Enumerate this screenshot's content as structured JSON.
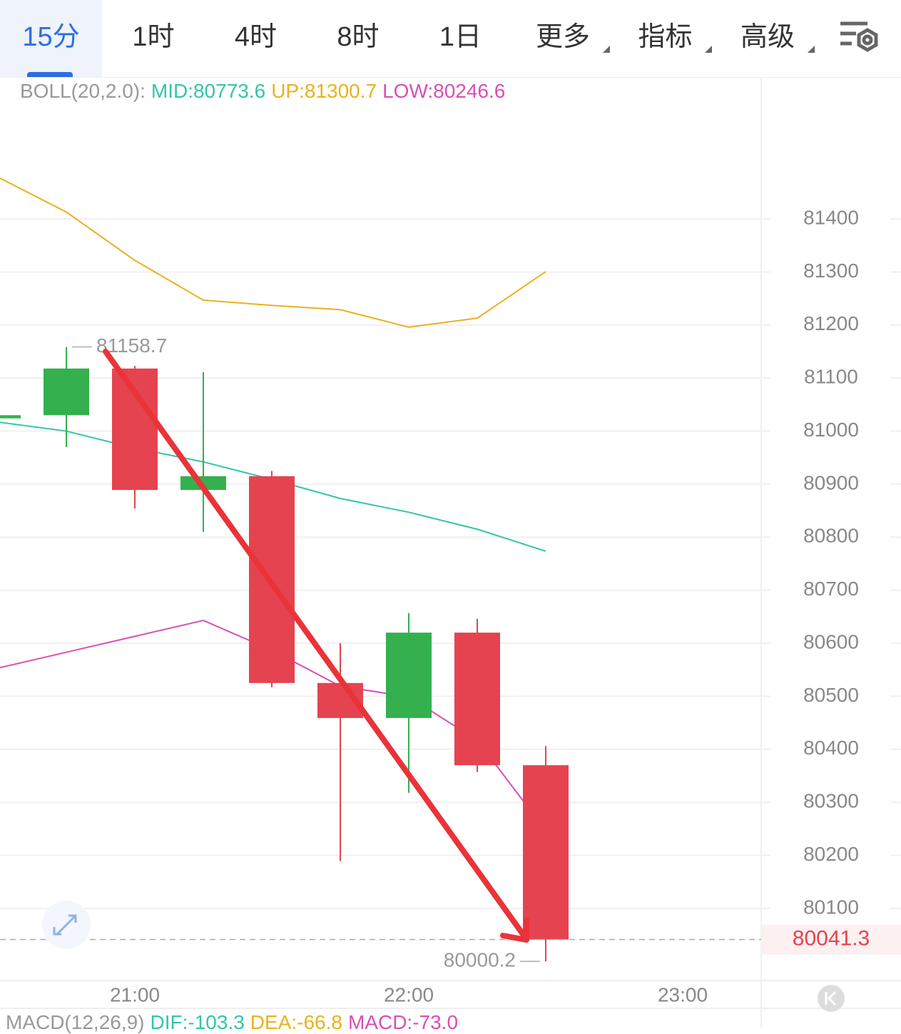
{
  "tabs": [
    "15分",
    "1时",
    "4时",
    "8时",
    "1日",
    "更多",
    "指标",
    "高级"
  ],
  "chart_data": {
    "type": "candlestick",
    "indicator": "BOLL(20,2.0):",
    "categories": [
      null,
      null,
      "21:00",
      null,
      null,
      null,
      "22:00",
      null,
      null,
      null,
      "23:00"
    ],
    "open": [
      81024,
      81030,
      81118,
      80889,
      80915,
      80525,
      80459,
      80620,
      80370,
      null,
      null
    ],
    "high": [
      81030,
      81158.7,
      81123,
      81111,
      80925,
      80600,
      80657,
      80646,
      80406,
      null,
      null
    ],
    "low": [
      81024,
      80970,
      80854,
      80810,
      80517,
      80189,
      80318,
      80357,
      80000.2,
      null,
      null
    ],
    "close": [
      81030,
      81118,
      80889,
      80915,
      80525,
      80459,
      80620,
      80370,
      80041.3,
      null,
      null
    ],
    "up_color": "#34b04f",
    "down_color": "#e5434f",
    "series": [
      {
        "name": "MID:80773.6",
        "color": "#33c6a6",
        "values": [
          81017,
          81000,
          80968,
          80942,
          80909,
          80873,
          80847,
          80815,
          80773.6,
          null,
          null
        ]
      },
      {
        "name": "UP:81300.7",
        "color": "#e9b21c",
        "values": [
          81479,
          81413,
          81322,
          81247,
          81237,
          81229,
          81196,
          81213,
          81300.7,
          null,
          null
        ]
      },
      {
        "name": "LOW:80246.6",
        "color": "#d94fb6",
        "values": [
          80553,
          80583,
          80613,
          80643,
          80587,
          80519,
          80499,
          80417,
          80246.6,
          null,
          null
        ]
      }
    ],
    "ylim": [
      79964,
      81665
    ],
    "yticks": [
      80100,
      80200,
      80300,
      80400,
      80500,
      80600,
      80700,
      80800,
      80900,
      81000,
      81100,
      81200,
      81300,
      81400
    ],
    "grid": true
  },
  "macd": {
    "title": "MACD(12,26,9)",
    "items": [
      {
        "text": "DIF:-103.3",
        "color": "#33c6a6"
      },
      {
        "text": "DEA:-66.8",
        "color": "#e9b21c"
      },
      {
        "text": "MACD:-73.0",
        "color": "#d94fb6"
      }
    ]
  }
}
